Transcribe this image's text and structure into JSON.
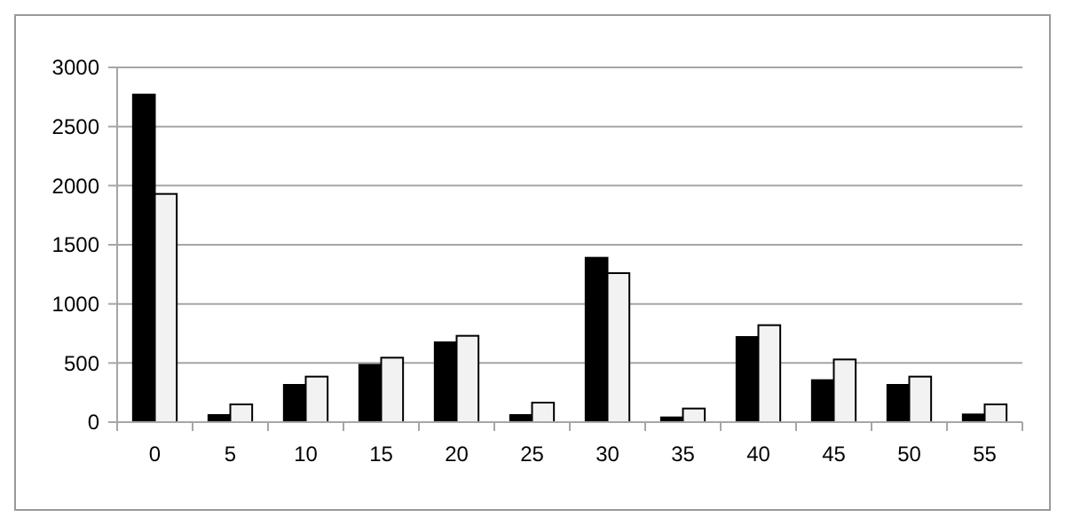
{
  "chart_data": {
    "type": "bar",
    "categories": [
      "0",
      "5",
      "10",
      "15",
      "20",
      "25",
      "30",
      "35",
      "40",
      "45",
      "50",
      "55"
    ],
    "series": [
      {
        "color": "#000000",
        "values": [
          2770,
          60,
          315,
          485,
          675,
          60,
          1390,
          40,
          720,
          355,
          315,
          65
        ]
      },
      {
        "color": "#f2f2f2",
        "values": [
          1930,
          150,
          385,
          545,
          730,
          165,
          1260,
          115,
          820,
          530,
          385,
          150
        ]
      }
    ],
    "ylim": [
      0,
      3000
    ],
    "yticks": [
      0,
      500,
      1000,
      1500,
      2000,
      2500,
      3000
    ],
    "grid": "y"
  }
}
